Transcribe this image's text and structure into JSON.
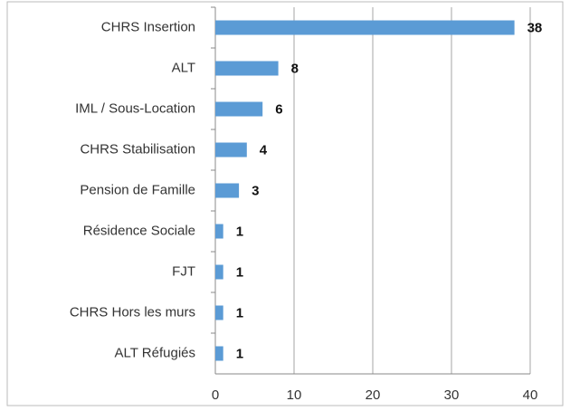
{
  "chart_data": {
    "type": "bar",
    "orientation": "horizontal",
    "categories": [
      "CHRS Insertion",
      "ALT",
      "IML / Sous-Location",
      "CHRS Stabilisation",
      "Pension de Famille",
      "Résidence Sociale",
      "FJT",
      "CHRS Hors les murs",
      "ALT Réfugiés"
    ],
    "values": [
      38,
      8,
      6,
      4,
      3,
      1,
      1,
      1,
      1
    ],
    "color": "#5b9bd5",
    "xlim": [
      0,
      40
    ],
    "xticks": [
      0,
      10,
      20,
      30,
      40
    ],
    "grid": true
  }
}
